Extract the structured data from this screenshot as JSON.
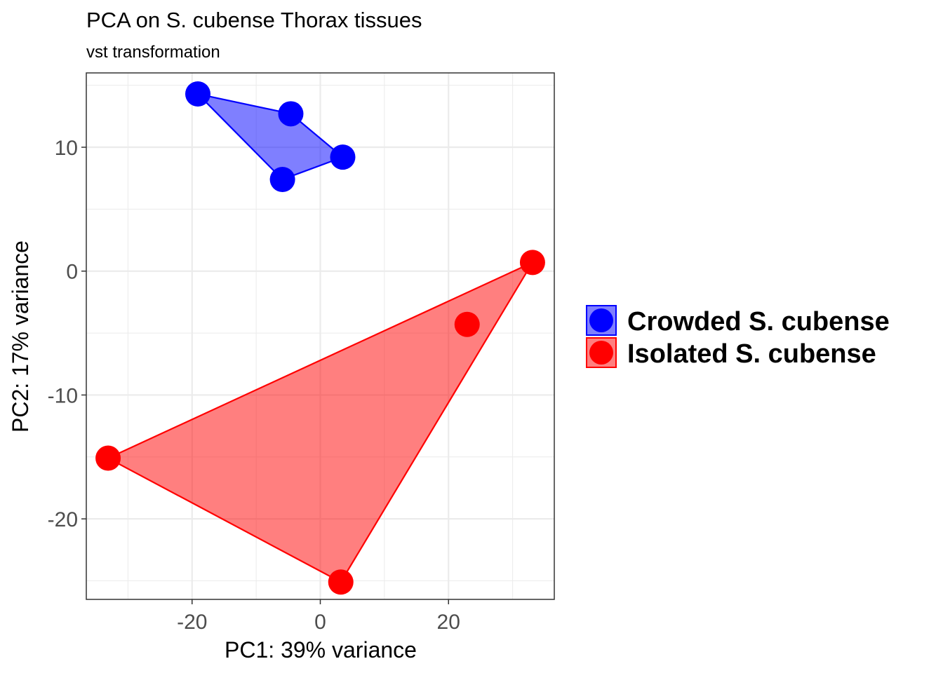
{
  "chart_data": {
    "type": "scatter",
    "title": "PCA on S. cubense Thorax tissues",
    "subtitle": "vst transformation",
    "xlabel": "PC1: 39% variance",
    "ylabel": "PC2: 17% variance",
    "xlim": [
      -36.5,
      36.5
    ],
    "ylim": [
      -26.5,
      16
    ],
    "x_ticks": [
      -20,
      0,
      20
    ],
    "x_tick_labels": [
      "-20",
      "0",
      "20"
    ],
    "y_ticks": [
      -20,
      -10,
      0,
      10
    ],
    "y_tick_labels": [
      "-20",
      "-10",
      "0",
      "10"
    ],
    "x_minor_ticks": [
      -30,
      -10,
      10,
      30
    ],
    "y_minor_ticks": [
      -25,
      -15,
      -5,
      5,
      15
    ],
    "grid": true,
    "legend_position": "right",
    "series": [
      {
        "name": "Crowded S. cubense",
        "color": "#0000ff",
        "points": [
          {
            "x": -19.1,
            "y": 14.3
          },
          {
            "x": -4.6,
            "y": 12.7
          },
          {
            "x": 3.5,
            "y": 9.2
          },
          {
            "x": -5.9,
            "y": 7.4
          }
        ],
        "hull": [
          0,
          1,
          2,
          3
        ]
      },
      {
        "name": "Isolated S. cubense",
        "color": "#ff0000",
        "points": [
          {
            "x": 33.1,
            "y": 0.7
          },
          {
            "x": 22.9,
            "y": -4.3
          },
          {
            "x": -33.1,
            "y": -15.1
          },
          {
            "x": 3.2,
            "y": -25.1
          }
        ],
        "hull": [
          0,
          2,
          3
        ]
      }
    ]
  }
}
